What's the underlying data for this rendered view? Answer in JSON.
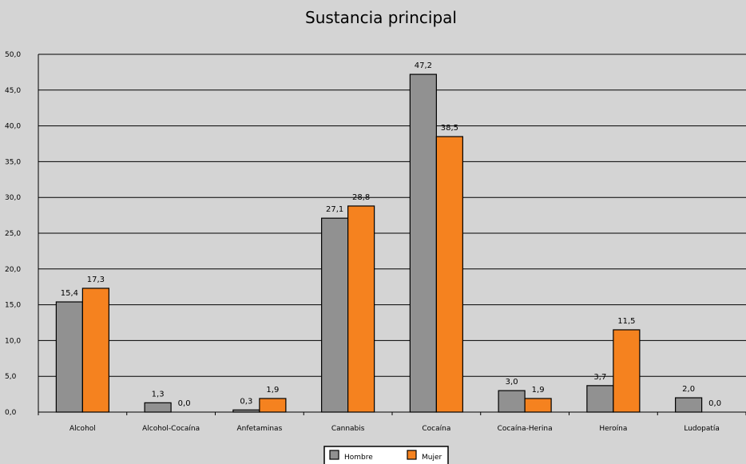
{
  "chart_data": {
    "type": "bar",
    "title": "Sustancia principal",
    "xlabel": "",
    "ylabel": "",
    "categories": [
      "Alcohol",
      "Alcohol-Cocaína",
      "Anfetaminas",
      "Cannabis",
      "Cocaína",
      "Cocaína-Herina",
      "Heroína",
      "Ludopatía"
    ],
    "series": [
      {
        "name": "Hombre",
        "color": "#919191",
        "values": [
          15.4,
          1.3,
          0.3,
          27.1,
          47.2,
          3.0,
          3.7,
          2.0
        ],
        "labels": [
          "15,4",
          "1,3",
          "0,3",
          "27,1",
          "47,2",
          "3,0",
          "3,7",
          "2,0"
        ]
      },
      {
        "name": "Mujer",
        "color": "#f5821f",
        "values": [
          17.3,
          0.0,
          1.9,
          28.8,
          38.5,
          1.9,
          11.5,
          0.0
        ],
        "labels": [
          "17,3",
          "0,0",
          "1,9",
          "28,8",
          "38,5",
          "1,9",
          "11,5",
          "0,0"
        ]
      }
    ],
    "ylim": [
      0,
      50
    ],
    "yticks": [
      "0,0",
      "5,0",
      "10,0",
      "15,0",
      "20,0",
      "25,0",
      "30,0",
      "35,0",
      "40,0",
      "45,0",
      "50,0"
    ],
    "grid": true,
    "legend_position": "bottom"
  }
}
